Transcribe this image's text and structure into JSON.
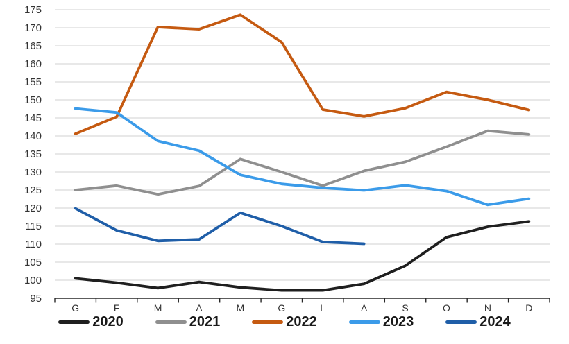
{
  "chart_data": {
    "type": "line",
    "title": "",
    "xlabel": "",
    "ylabel": "",
    "categories": [
      "G",
      "F",
      "M",
      "A",
      "M",
      "G",
      "L",
      "A",
      "S",
      "O",
      "N",
      "D"
    ],
    "series": [
      {
        "name": "2020",
        "color": "#1f1f1f",
        "values": [
          100.5,
          99.3,
          97.8,
          99.5,
          98.0,
          97.2,
          97.2,
          99.0,
          104.0,
          111.9,
          114.8,
          116.3
        ]
      },
      {
        "name": "2021",
        "color": "#8f8f8f",
        "values": [
          125.0,
          126.2,
          123.8,
          126.1,
          133.6,
          130.0,
          126.2,
          130.3,
          132.8,
          137.0,
          141.4,
          140.4
        ]
      },
      {
        "name": "2022",
        "color": "#c55a11",
        "values": [
          140.6,
          145.3,
          170.2,
          169.6,
          173.6,
          166.0,
          147.3,
          145.4,
          147.7,
          152.2,
          150.0,
          147.2
        ]
      },
      {
        "name": "2023",
        "color": "#3b9be9",
        "values": [
          147.6,
          146.5,
          138.6,
          135.9,
          129.2,
          126.7,
          125.6,
          124.9,
          126.3,
          124.7,
          120.9,
          122.6
        ]
      },
      {
        "name": "2024",
        "color": "#1f5ea8",
        "values": [
          119.9,
          113.8,
          110.9,
          111.3,
          118.7,
          115.0,
          110.6,
          110.1
        ]
      }
    ],
    "ylim": [
      95,
      175
    ],
    "yticks": [
      95,
      100,
      105,
      110,
      115,
      120,
      125,
      130,
      135,
      140,
      145,
      150,
      155,
      160,
      165,
      170,
      175
    ],
    "grid": "horizontal",
    "legend_position": "bottom",
    "grid_color": "#d9d9d9",
    "axis_color": "#262626",
    "tick_label_color": "#333333"
  }
}
